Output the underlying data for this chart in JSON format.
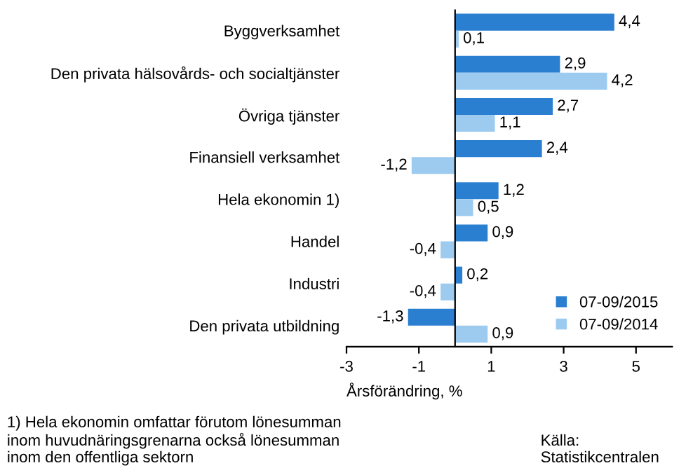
{
  "chart_data": {
    "type": "bar",
    "orientation": "horizontal",
    "xlabel": "Årsförändring, %",
    "categories": [
      "Byggverksamhet",
      "Den privata hälsovårds- och socialtjänster",
      "Övriga tjänster",
      "Finansiell verksamhet",
      "Hela ekonomin 1)",
      "Handel",
      "Industri",
      "Den privata utbildning"
    ],
    "series": [
      {
        "name": "07-09/2015",
        "color": "#2a7fd0",
        "values": [
          4.4,
          2.9,
          2.7,
          2.4,
          1.2,
          0.9,
          0.2,
          -1.3
        ],
        "value_labels": [
          "4,4",
          "2,9",
          "2,7",
          "2,4",
          "1,2",
          "0,9",
          "0,2",
          "-1,3"
        ]
      },
      {
        "name": "07-09/2014",
        "color": "#9dcbf0",
        "values": [
          0.1,
          4.2,
          1.1,
          -1.2,
          0.5,
          -0.4,
          -0.4,
          0.9
        ],
        "value_labels": [
          "0,1",
          "4,2",
          "1,1",
          "-1,2",
          "0,5",
          "-0,4",
          "-0,4",
          "0,9"
        ]
      }
    ],
    "xlim": [
      -3,
      6
    ],
    "xticks": [
      {
        "value": -3,
        "label": "-3"
      },
      {
        "value": -1,
        "label": "-1"
      },
      1,
      3,
      5
    ],
    "grid": false,
    "legend": "bottom right",
    "annotations": [
      "1) Hela ekonomin omfattar förutom lönesumman\ninom huvudnäringsgrenarna också lönesumman\ninom den offentliga sektorn",
      "Källa:\nStatistikcentralen"
    ]
  }
}
